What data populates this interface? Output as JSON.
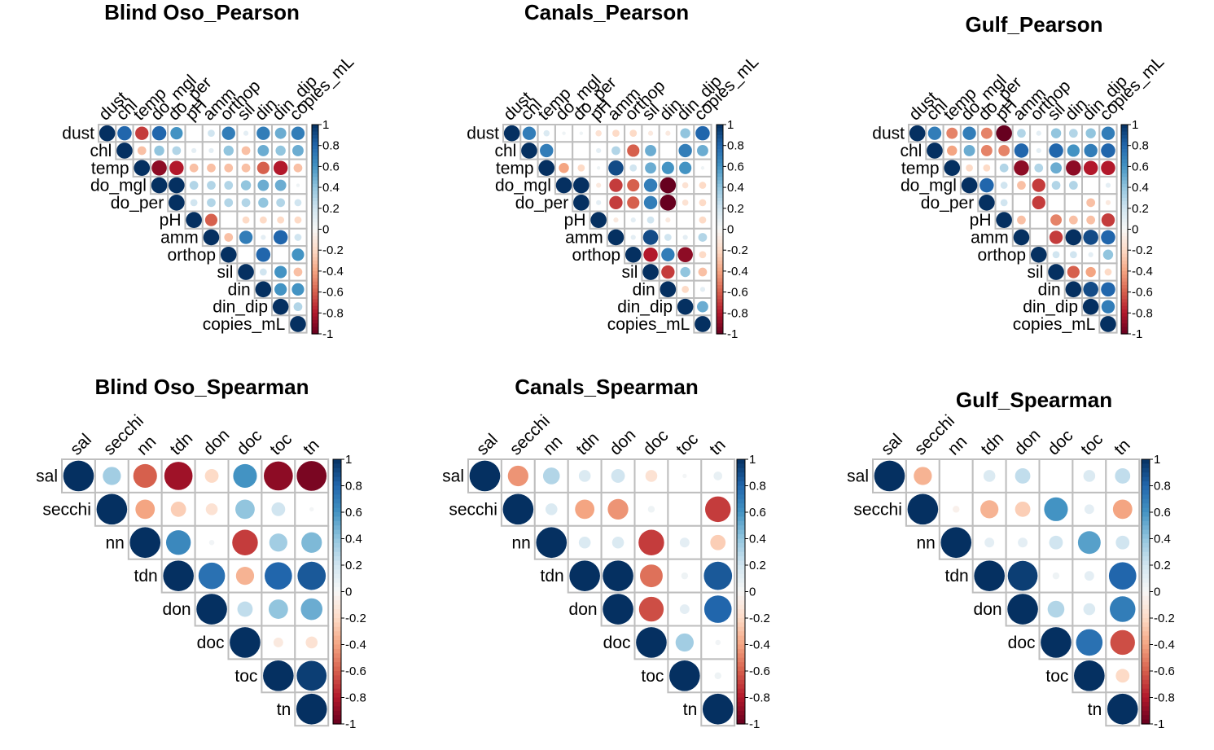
{
  "chart_data": [
    {
      "type": "heatmap",
      "title": "Blind Oso_Pearson",
      "method": "pearson",
      "shape": "upper-triangle correlation matrix (circles)",
      "variables": [
        "dust",
        "chl",
        "temp",
        "do_mgl",
        "do_per",
        "pH",
        "amm",
        "orthop",
        "sil",
        "din",
        "din_dip",
        "copies_mL"
      ],
      "matrix": [
        [
          1,
          0.8,
          -0.7,
          0.8,
          0.6,
          0,
          0.2,
          0.7,
          0.1,
          0.7,
          0.5,
          0.7
        ],
        [
          null,
          1,
          -0.3,
          0.4,
          0.3,
          0.1,
          0.1,
          0.4,
          -0.3,
          0.5,
          0.4,
          0.5
        ],
        [
          null,
          null,
          1,
          -0.9,
          -0.8,
          -0.3,
          -0.3,
          -0.3,
          -0.3,
          -0.6,
          -0.8,
          -0.3
        ],
        [
          null,
          null,
          null,
          1,
          1,
          0.3,
          0.3,
          0.3,
          0.4,
          0.5,
          0.5,
          0.05
        ],
        [
          null,
          null,
          null,
          null,
          1,
          0.2,
          0.3,
          0.3,
          0.3,
          0.4,
          0.3,
          0.2
        ],
        [
          null,
          null,
          null,
          null,
          null,
          1,
          -0.6,
          0,
          -0.2,
          -0.2,
          -0.2,
          -0.2
        ],
        [
          null,
          null,
          null,
          null,
          null,
          null,
          1,
          -0.3,
          0.7,
          0.1,
          0.8,
          0.2
        ],
        [
          null,
          null,
          null,
          null,
          null,
          null,
          null,
          1,
          0,
          0.8,
          0,
          0.6
        ],
        [
          null,
          null,
          null,
          null,
          null,
          null,
          null,
          null,
          1,
          0.2,
          0.6,
          -0.3
        ],
        [
          null,
          null,
          null,
          null,
          null,
          null,
          null,
          null,
          null,
          1,
          0.6,
          0.6
        ],
        [
          null,
          null,
          null,
          null,
          null,
          null,
          null,
          null,
          null,
          null,
          1,
          0.3
        ],
        [
          null,
          null,
          null,
          null,
          null,
          null,
          null,
          null,
          null,
          null,
          null,
          1
        ]
      ],
      "colorbar_ticks": [
        "1",
        "0.8",
        "0.6",
        "0.4",
        "0.2",
        "0",
        "-0.2",
        "-0.4",
        "-0.6",
        "-0.8",
        "-1"
      ]
    },
    {
      "type": "heatmap",
      "title": "Canals_Pearson",
      "method": "pearson",
      "shape": "upper-triangle correlation matrix (circles)",
      "variables": [
        "dust",
        "chl",
        "temp",
        "do_mgl",
        "do_per",
        "pH",
        "amm",
        "orthop",
        "sil",
        "din",
        "din_dip",
        "copies_mL"
      ],
      "matrix": [
        [
          1,
          0.7,
          0.15,
          0.05,
          0.05,
          -0.15,
          -0.2,
          -0.2,
          -0.1,
          -0.1,
          0.4,
          0.8
        ],
        [
          null,
          1,
          0.7,
          0,
          0,
          0.1,
          0.3,
          -0.6,
          0.5,
          0,
          0.7,
          0.5
        ],
        [
          null,
          null,
          1,
          -0.4,
          -0.2,
          0.05,
          0.9,
          0.2,
          0.5,
          0.6,
          0.6,
          0.05
        ],
        [
          null,
          null,
          null,
          1,
          1,
          -0.1,
          -0.7,
          -0.6,
          0.7,
          -1,
          -0.15,
          -0.2
        ],
        [
          null,
          null,
          null,
          null,
          1,
          0.1,
          -0.7,
          -0.6,
          0.7,
          -1,
          -0.15,
          -0.2
        ],
        [
          null,
          null,
          null,
          null,
          null,
          1,
          -0.1,
          0.1,
          0.2,
          -0.1,
          0,
          -0.2
        ],
        [
          null,
          null,
          null,
          null,
          null,
          null,
          1,
          0.1,
          0.9,
          0.2,
          0.1,
          0.3
        ],
        [
          null,
          null,
          null,
          null,
          null,
          null,
          null,
          1,
          -0.8,
          0.7,
          -0.9,
          -0.2
        ],
        [
          null,
          null,
          null,
          null,
          null,
          null,
          null,
          null,
          1,
          -0.7,
          0.4,
          -0.3
        ],
        [
          null,
          null,
          null,
          null,
          null,
          null,
          null,
          null,
          null,
          1,
          -0.2,
          0.1
        ],
        [
          null,
          null,
          null,
          null,
          null,
          null,
          null,
          null,
          null,
          null,
          1,
          0.5
        ],
        [
          null,
          null,
          null,
          null,
          null,
          null,
          null,
          null,
          null,
          null,
          null,
          1
        ]
      ],
      "colorbar_ticks": [
        "1",
        "0.8",
        "0.6",
        "0.4",
        "0.2",
        "0",
        "-0.2",
        "-0.4",
        "-0.6",
        "-0.8",
        "-1"
      ]
    },
    {
      "type": "heatmap",
      "title": "Gulf_Pearson",
      "method": "pearson",
      "shape": "upper-triangle correlation matrix (circles)",
      "variables": [
        "dust",
        "chl",
        "temp",
        "do_mgl",
        "do_per",
        "pH",
        "amm",
        "orthop",
        "sil",
        "din",
        "din_dip",
        "copies_mL"
      ],
      "matrix": [
        [
          1,
          0.7,
          -0.5,
          0.7,
          -0.5,
          -1,
          0.3,
          0.1,
          0.4,
          0.3,
          0.4,
          0.7
        ],
        [
          null,
          1,
          -0.4,
          0.5,
          -0.5,
          -0.5,
          0.8,
          0.1,
          0.8,
          0.6,
          0.7,
          0.8
        ],
        [
          null,
          null,
          1,
          -0.2,
          -0.2,
          0.3,
          -0.9,
          0.3,
          0.5,
          -0.9,
          -0.8,
          -0.8
        ],
        [
          null,
          null,
          null,
          1,
          0.8,
          0.2,
          -0.3,
          -0.7,
          0.3,
          0.3,
          0,
          0.1
        ],
        [
          null,
          null,
          null,
          null,
          1,
          0.2,
          0,
          -0.7,
          0,
          0,
          -0.3,
          -0.1
        ],
        [
          null,
          null,
          null,
          null,
          null,
          1,
          -0.3,
          0,
          -0.5,
          -0.3,
          -0.3,
          -0.7
        ],
        [
          null,
          null,
          null,
          null,
          null,
          null,
          1,
          0,
          -0.7,
          1,
          0.9,
          0.8
        ],
        [
          null,
          null,
          null,
          null,
          null,
          null,
          null,
          1,
          0.2,
          0.2,
          0.1,
          0.4
        ],
        [
          null,
          null,
          null,
          null,
          null,
          null,
          null,
          null,
          1,
          -0.6,
          -0.4,
          -0.2
        ],
        [
          null,
          null,
          null,
          null,
          null,
          null,
          null,
          null,
          null,
          1,
          0.9,
          0.8
        ],
        [
          null,
          null,
          null,
          null,
          null,
          null,
          null,
          null,
          null,
          null,
          1,
          0.7
        ],
        [
          null,
          null,
          null,
          null,
          null,
          null,
          null,
          null,
          null,
          null,
          null,
          1
        ]
      ],
      "colorbar_ticks": [
        "1",
        "0.8",
        "0.6",
        "0.4",
        "0.2",
        "0",
        "-0.2",
        "-0.4",
        "-0.6",
        "-0.8",
        "-1"
      ]
    },
    {
      "type": "heatmap",
      "title": "Blind Oso_Spearman",
      "method": "spearman",
      "shape": "upper-triangle correlation matrix (circles)",
      "variables": [
        "sal",
        "secchi",
        "nn",
        "tdn",
        "don",
        "doc",
        "toc",
        "tn"
      ],
      "matrix": [
        [
          1,
          0.35,
          -0.6,
          -0.85,
          -0.2,
          0.6,
          -0.9,
          -0.95
        ],
        [
          null,
          1,
          -0.4,
          -0.25,
          -0.15,
          0.4,
          0.2,
          0.02
        ],
        [
          null,
          null,
          1,
          0.65,
          0.03,
          -0.7,
          0.35,
          0.45
        ],
        [
          null,
          null,
          null,
          1,
          0.75,
          -0.35,
          0.8,
          0.85
        ],
        [
          null,
          null,
          null,
          null,
          1,
          0.25,
          0.4,
          0.5
        ],
        [
          null,
          null,
          null,
          null,
          null,
          1,
          -0.1,
          -0.15
        ],
        [
          null,
          null,
          null,
          null,
          null,
          null,
          1,
          0.95
        ],
        [
          null,
          null,
          null,
          null,
          null,
          null,
          null,
          1
        ]
      ],
      "colorbar_ticks": [
        "1",
        "0.8",
        "0.6",
        "0.4",
        "0.2",
        "0",
        "-0.2",
        "-0.4",
        "-0.6",
        "-0.8",
        "-1"
      ]
    },
    {
      "type": "heatmap",
      "title": "Canals_Spearman",
      "method": "spearman",
      "shape": "upper-triangle correlation matrix (circles)",
      "variables": [
        "sal",
        "secchi",
        "nn",
        "tdn",
        "don",
        "doc",
        "toc",
        "tn"
      ],
      "matrix": [
        [
          1,
          -0.45,
          0.3,
          0.15,
          0.2,
          -0.15,
          0.02,
          0.08
        ],
        [
          null,
          1,
          0.15,
          -0.4,
          -0.45,
          0.05,
          0,
          -0.7
        ],
        [
          null,
          null,
          1,
          0.15,
          0.15,
          -0.7,
          0.1,
          -0.25
        ],
        [
          null,
          null,
          null,
          1,
          1,
          -0.55,
          0.05,
          0.85
        ],
        [
          null,
          null,
          null,
          null,
          1,
          -0.65,
          0.1,
          0.8
        ],
        [
          null,
          null,
          null,
          null,
          null,
          1,
          0.35,
          0.03
        ],
        [
          null,
          null,
          null,
          null,
          null,
          null,
          1,
          0.05
        ],
        [
          null,
          null,
          null,
          null,
          null,
          null,
          null,
          1
        ]
      ],
      "colorbar_ticks": [
        "1",
        "0.8",
        "0.6",
        "0.4",
        "0.2",
        "0",
        "-0.2",
        "-0.4",
        "-0.6",
        "-0.8",
        "-1"
      ]
    },
    {
      "type": "heatmap",
      "title": "Gulf_Spearman",
      "method": "spearman",
      "shape": "upper-triangle correlation matrix (circles)",
      "variables": [
        "sal",
        "secchi",
        "nn",
        "tdn",
        "don",
        "doc",
        "toc",
        "tn"
      ],
      "matrix": [
        [
          1,
          -0.35,
          0,
          0.15,
          0.25,
          0,
          0.15,
          0.25
        ],
        [
          null,
          1,
          -0.05,
          -0.35,
          -0.25,
          0.6,
          0.1,
          -0.4
        ],
        [
          null,
          null,
          1,
          0.1,
          0.1,
          0.2,
          0.55,
          0.2
        ],
        [
          null,
          null,
          null,
          1,
          0.95,
          0.05,
          0.1,
          0.8
        ],
        [
          null,
          null,
          null,
          null,
          1,
          0.3,
          0.15,
          0.7
        ],
        [
          null,
          null,
          null,
          null,
          null,
          1,
          0.75,
          -0.65
        ],
        [
          null,
          null,
          null,
          null,
          null,
          null,
          1,
          -0.2
        ],
        [
          null,
          null,
          null,
          null,
          null,
          null,
          null,
          1
        ]
      ],
      "colorbar_ticks": [
        "1",
        "0.8",
        "0.6",
        "0.4",
        "0.2",
        "0",
        "-0.2",
        "-0.4",
        "-0.6",
        "-0.8",
        "-1"
      ]
    }
  ],
  "colors": {
    "positive_max": "#053061",
    "neutral": "#f7f7f7",
    "negative_max": "#67001f",
    "grid": "#bebebe"
  }
}
